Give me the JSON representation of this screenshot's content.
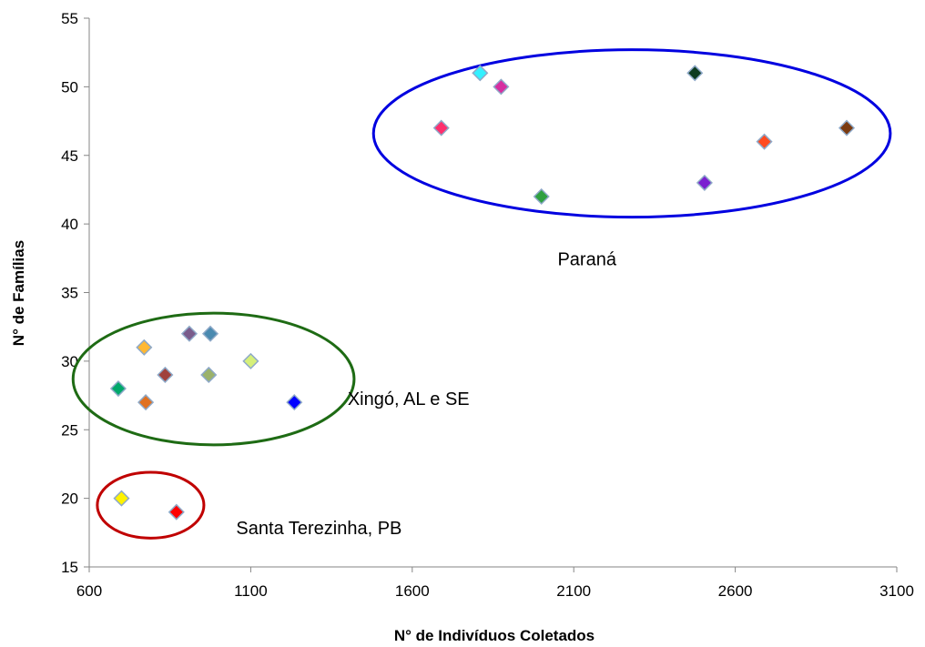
{
  "chart_data": {
    "type": "scatter",
    "xlabel": "N° de Indivíduos Coletados",
    "ylabel": "N° de Famílias",
    "xlim": [
      600,
      3100
    ],
    "ylim": [
      15,
      55
    ],
    "x_ticks": [
      600,
      1100,
      1600,
      2100,
      2600,
      3100
    ],
    "y_ticks": [
      15,
      20,
      25,
      30,
      35,
      40,
      45,
      50,
      55
    ],
    "grid": false,
    "legend": "none",
    "marker": "diamond",
    "points": [
      {
        "x": 700,
        "y": 20,
        "color": "#FFF200"
      },
      {
        "x": 870,
        "y": 19,
        "color": "#FF0000"
      },
      {
        "x": 690,
        "y": 28,
        "color": "#00A86B"
      },
      {
        "x": 770,
        "y": 31,
        "color": "#FFB833"
      },
      {
        "x": 775,
        "y": 27,
        "color": "#E07020"
      },
      {
        "x": 835,
        "y": 29,
        "color": "#A0413C"
      },
      {
        "x": 910,
        "y": 32,
        "color": "#7A5C8C"
      },
      {
        "x": 970,
        "y": 29,
        "color": "#9BB26B"
      },
      {
        "x": 975,
        "y": 32,
        "color": "#4A8AB0"
      },
      {
        "x": 1100,
        "y": 30,
        "color": "#D6F07A"
      },
      {
        "x": 1235,
        "y": 27,
        "color": "#0000FF"
      },
      {
        "x": 1690,
        "y": 47,
        "color": "#FF2F6E"
      },
      {
        "x": 1810,
        "y": 51,
        "color": "#33F0FF"
      },
      {
        "x": 1875,
        "y": 50,
        "color": "#D62FA0"
      },
      {
        "x": 2000,
        "y": 42,
        "color": "#2FA040"
      },
      {
        "x": 2475,
        "y": 51,
        "color": "#0D3B1F"
      },
      {
        "x": 2505,
        "y": 43,
        "color": "#7A1FD0"
      },
      {
        "x": 2690,
        "y": 46,
        "color": "#FF4A1F"
      },
      {
        "x": 2945,
        "y": 47,
        "color": "#7A3A10"
      }
    ],
    "groups": [
      {
        "label": "Santa Terezinha, PB",
        "color": "#C00000",
        "cx": 790,
        "cy": 19.5,
        "rx": 165,
        "ry": 2.4,
        "label_x": 1055,
        "label_y": 17.4
      },
      {
        "label": "Xingó, AL e SE",
        "color": "#1E6B14",
        "cx": 985,
        "cy": 28.7,
        "rx": 435,
        "ry": 4.8,
        "label_x": 1400,
        "label_y": 26.8
      },
      {
        "label": "Paraná",
        "color": "#0000E0",
        "cx": 2280,
        "cy": 46.6,
        "rx": 800,
        "ry": 6.1,
        "label_x": 2050,
        "label_y": 37.0
      }
    ]
  }
}
